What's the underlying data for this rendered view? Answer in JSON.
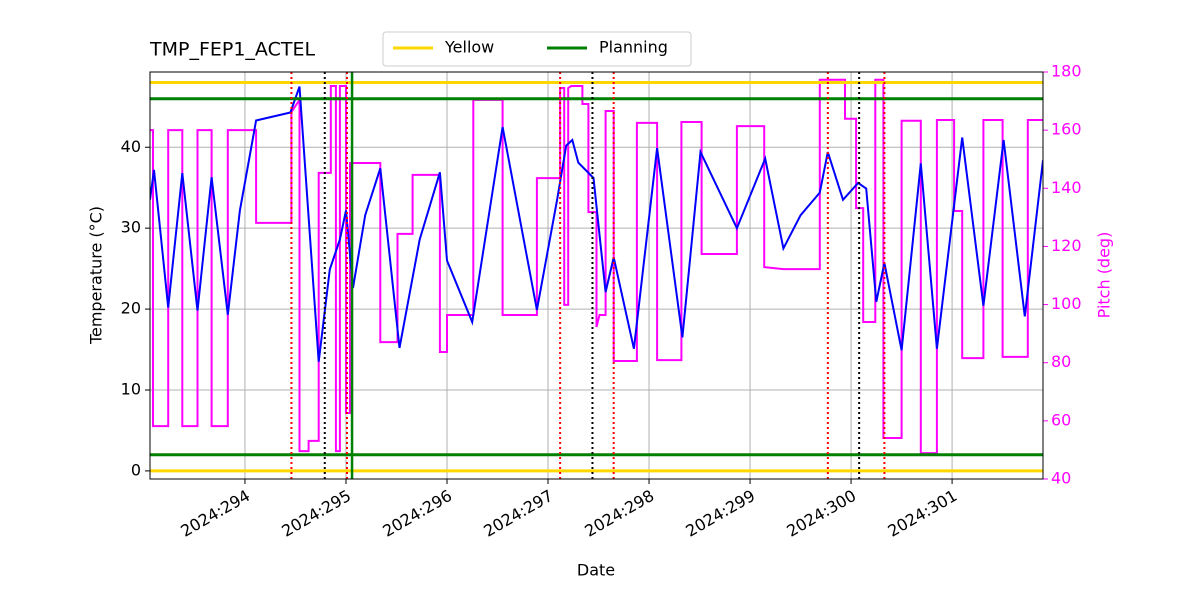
{
  "chart_data": {
    "type": "line",
    "title": "TMP_FEP1_ACTEL",
    "x_label": "Date",
    "y_label": "Temperature (°C)",
    "y2_label": "Pitch (deg)",
    "xlim": [
      293.06,
      301.9
    ],
    "xticks": [
      {
        "value": 294,
        "label": "2024:294"
      },
      {
        "value": 295,
        "label": "2024:295"
      },
      {
        "value": 296,
        "label": "2024:296"
      },
      {
        "value": 297,
        "label": "2024:297"
      },
      {
        "value": 298,
        "label": "2024:298"
      },
      {
        "value": 299,
        "label": "2024:299"
      },
      {
        "value": 300,
        "label": "2024:300"
      },
      {
        "value": 301,
        "label": "2024:301"
      }
    ],
    "ylim": [
      -1,
      49.3
    ],
    "yticks": [
      0,
      10,
      20,
      30,
      40
    ],
    "y2lim": [
      40,
      180
    ],
    "y2ticks": [
      40,
      60,
      80,
      100,
      120,
      140,
      160,
      180
    ],
    "y2_color": "#ff00ff",
    "grid": true,
    "series": [
      {
        "color": "#ff00ff",
        "axis": "y2",
        "x": [
          293.06,
          293.09,
          293.09,
          293.24,
          293.24,
          293.38,
          293.38,
          293.53,
          293.53,
          293.67,
          293.67,
          293.83,
          293.83,
          294.11,
          294.11,
          294.46,
          294.46,
          294.54,
          294.54,
          294.63,
          294.63,
          294.73,
          294.73,
          294.85,
          294.85,
          294.9,
          294.9,
          294.94,
          294.94,
          295.0,
          295.0,
          295.04,
          295.04,
          295.34,
          295.34,
          295.51,
          295.51,
          295.66,
          295.66,
          295.93,
          295.93,
          296.0,
          296.0,
          296.26,
          296.26,
          296.55,
          296.55,
          296.89,
          296.89,
          297.12,
          297.12,
          297.16,
          297.16,
          297.2,
          297.2,
          297.23,
          297.34,
          297.34,
          297.4,
          297.4,
          297.48,
          297.48,
          297.51,
          297.57,
          297.57,
          297.65,
          297.65,
          297.88,
          297.88,
          298.08,
          298.08,
          298.32,
          298.32,
          298.52,
          298.52,
          298.87,
          298.87,
          299.14,
          299.14,
          299.33,
          299.69,
          299.69,
          299.94,
          299.94,
          300.05,
          300.05,
          300.12,
          300.12,
          300.24,
          300.24,
          300.32,
          300.32,
          300.5,
          300.5,
          300.69,
          300.69,
          300.85,
          300.85,
          301.02,
          301.02,
          301.1,
          301.1,
          301.31,
          301.31,
          301.5,
          301.5,
          301.75,
          301.75,
          301.9
        ],
        "values": [
          160,
          160,
          58.2,
          58.2,
          160,
          160,
          58.2,
          58.2,
          160,
          160,
          58.2,
          58.2,
          160,
          160,
          128.1,
          128.1,
          166.2,
          170.4,
          49.6,
          49.6,
          53.1,
          53.1,
          145.3,
          145.3,
          175.2,
          175.2,
          49.6,
          49.6,
          175.2,
          175.2,
          62.7,
          62.7,
          148.7,
          148.7,
          87.1,
          87.1,
          124.3,
          124.3,
          144.6,
          144.6,
          83.7,
          83.7,
          96.4,
          96.4,
          170.4,
          170.4,
          96.4,
          96.4,
          143.5,
          143.5,
          174.5,
          174.5,
          99.9,
          99.9,
          174.5,
          175.2,
          175.2,
          169.0,
          169.0,
          131.8,
          131.8,
          92.3,
          96.4,
          96.4,
          166.6,
          166.6,
          80.6,
          80.6,
          162.5,
          162.5,
          80.9,
          80.9,
          162.8,
          162.8,
          117.4,
          117.4,
          161.4,
          161.4,
          112.9,
          112.2,
          112.2,
          177.3,
          177.3,
          163.9,
          163.9,
          133.2,
          133.2,
          94.0,
          94.0,
          177.3,
          177.3,
          54.1,
          54.1,
          163.2,
          163.2,
          48.9,
          48.9,
          163.5,
          163.5,
          132.2,
          132.2,
          81.6,
          81.6,
          163.5,
          163.5,
          82.0,
          82.0,
          163.5,
          163.5
        ]
      },
      {
        "color": "#0000ff",
        "x": [
          293.06,
          293.1,
          293.24,
          293.38,
          293.53,
          293.67,
          293.83,
          293.95,
          294.11,
          294.45,
          294.54,
          294.73,
          294.84,
          294.94,
          295.0,
          295.07,
          295.19,
          295.34,
          295.53,
          295.73,
          295.93,
          296.0,
          296.25,
          296.55,
          296.89,
          297.09,
          297.18,
          297.24,
          297.3,
          297.45,
          297.57,
          297.65,
          297.85,
          298.08,
          298.33,
          298.51,
          298.87,
          299.15,
          299.33,
          299.5,
          299.69,
          299.77,
          299.92,
          300.07,
          300.15,
          300.25,
          300.33,
          300.5,
          300.69,
          300.85,
          301.1,
          301.31,
          301.51,
          301.72,
          301.9
        ],
        "values": [
          33.5,
          37.2,
          20.2,
          36.8,
          19.8,
          36.3,
          19.3,
          32.2,
          43.3,
          44.3,
          47.5,
          13.5,
          24.9,
          28.6,
          32.2,
          22.6,
          31.6,
          37.4,
          15.2,
          28.6,
          36.9,
          26.0,
          18.4,
          42.5,
          19.9,
          33.5,
          40.2,
          40.9,
          38.1,
          36.2,
          22.1,
          26.4,
          15.1,
          39.9,
          16.5,
          39.4,
          30.0,
          38.6,
          27.5,
          31.6,
          34.4,
          39.4,
          33.5,
          35.6,
          34.9,
          20.9,
          25.7,
          14.9,
          38.0,
          15.1,
          41.2,
          20.4,
          40.9,
          19.1,
          38.4
        ]
      }
    ],
    "hlines": [
      {
        "name": "Yellow",
        "color": "#ffd700",
        "values": [
          0,
          48
        ]
      },
      {
        "name": "Planning",
        "color": "#008000",
        "values": [
          2,
          46
        ]
      }
    ],
    "vlines": [
      {
        "color": "#ff0000",
        "style": "dotted",
        "x": [
          294.46,
          295.01,
          297.12,
          297.65,
          299.77,
          300.33
        ]
      },
      {
        "color": "#000000",
        "style": "dotted",
        "x": [
          294.79,
          297.44,
          300.08
        ]
      },
      {
        "color": "#008000",
        "style": "solid",
        "x": [
          295.06
        ]
      }
    ]
  }
}
